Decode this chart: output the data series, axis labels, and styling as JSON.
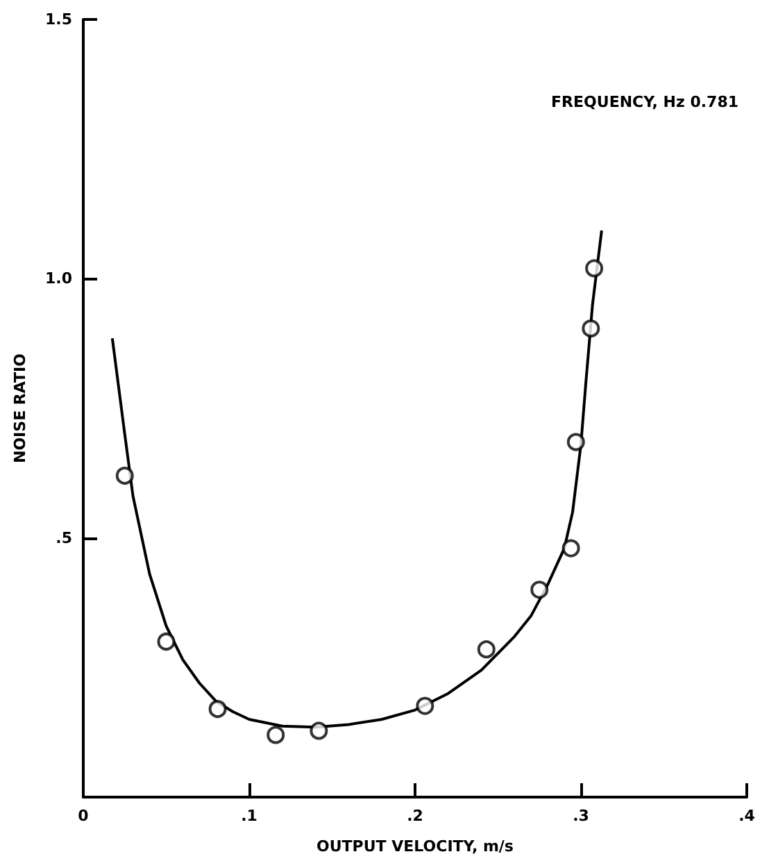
{
  "chart_data": {
    "type": "scatter",
    "xlabel": "OUTPUT VELOCITY, m/s",
    "ylabel": "NOISE RATIO",
    "annotations": [
      "FREQUENCY, Hz 0.781"
    ],
    "xlim": [
      0,
      0.4
    ],
    "xticks": [
      {
        "value": 0,
        "label": "0"
      },
      {
        "value": 0.1,
        "label": ".1"
      },
      {
        "value": 0.2,
        "label": ".2"
      },
      {
        "value": 0.3,
        "label": ".3"
      },
      {
        "value": 0.4,
        "label": ".4"
      }
    ],
    "ylim": [
      0,
      1.5
    ],
    "yticks": [
      {
        "value": 0,
        "label": null
      },
      {
        "value": 0.5,
        "label": ".5"
      },
      {
        "value": 1.0,
        "label": "1.0"
      },
      {
        "value": 1.5,
        "label": "1.5"
      }
    ],
    "grid": false,
    "marker": "circle",
    "series": [
      {
        "color": "#000000",
        "x": [
          0.025,
          0.05,
          0.081,
          0.116,
          0.142,
          0.206,
          0.243,
          0.275,
          0.294,
          0.297,
          0.306,
          0.308
        ],
        "values": [
          0.62,
          0.3,
          0.17,
          0.12,
          0.128,
          0.176,
          0.285,
          0.4,
          0.48,
          0.685,
          0.904,
          1.02
        ]
      },
      {
        "type": "line",
        "marker": "none",
        "line_style": "solid",
        "color": "#000000",
        "x": [
          0.0175,
          0.025,
          0.03,
          0.04,
          0.05,
          0.06,
          0.07,
          0.08,
          0.09,
          0.1,
          0.12,
          0.14,
          0.16,
          0.18,
          0.2,
          0.22,
          0.24,
          0.26,
          0.27,
          0.28,
          0.29,
          0.295,
          0.3,
          0.303,
          0.307,
          0.3125
        ],
        "values": [
          0.885,
          0.7,
          0.58,
          0.43,
          0.33,
          0.265,
          0.22,
          0.185,
          0.165,
          0.15,
          0.137,
          0.135,
          0.14,
          0.15,
          0.168,
          0.2,
          0.245,
          0.31,
          0.35,
          0.41,
          0.48,
          0.55,
          0.68,
          0.8,
          0.95,
          1.093
        ]
      }
    ]
  }
}
